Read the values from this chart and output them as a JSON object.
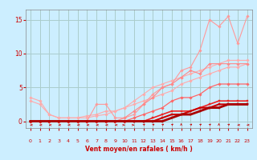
{
  "background_color": "#cceeff",
  "grid_color": "#aacccc",
  "xlabel": "Vent moyen/en rafales ( km/h )",
  "xlim": [
    -0.5,
    23.5
  ],
  "ylim": [
    -1.0,
    16.5
  ],
  "yticks": [
    0,
    5,
    10,
    15
  ],
  "xticks": [
    0,
    1,
    2,
    3,
    4,
    5,
    6,
    7,
    8,
    9,
    10,
    11,
    12,
    13,
    14,
    15,
    16,
    17,
    18,
    19,
    20,
    21,
    22,
    23
  ],
  "series": [
    {
      "x": [
        0,
        1,
        2,
        3,
        4,
        5,
        6,
        7,
        8,
        9,
        10,
        11,
        12,
        13,
        14,
        15,
        16,
        17,
        18,
        19,
        20,
        21,
        22,
        23
      ],
      "y": [
        3.0,
        2.5,
        1.0,
        0.5,
        0.5,
        0.5,
        0.8,
        1.0,
        1.5,
        1.5,
        2.0,
        2.5,
        3.0,
        3.5,
        4.0,
        4.5,
        5.5,
        6.0,
        6.5,
        7.0,
        7.5,
        8.0,
        8.0,
        8.5
      ],
      "color": "#ffaaaa",
      "lw": 0.8,
      "marker": "D",
      "ms": 1.8
    },
    {
      "x": [
        0,
        1,
        2,
        3,
        4,
        5,
        6,
        7,
        8,
        9,
        10,
        11,
        12,
        13,
        14,
        15,
        16,
        17,
        18,
        19,
        20,
        21,
        22,
        23
      ],
      "y": [
        3.5,
        3.0,
        1.0,
        0.5,
        0.5,
        0.5,
        0.5,
        0.8,
        1.0,
        1.5,
        2.0,
        3.0,
        4.0,
        5.0,
        5.5,
        6.0,
        6.5,
        7.0,
        7.5,
        8.0,
        8.5,
        9.0,
        9.0,
        9.0
      ],
      "color": "#ffaaaa",
      "lw": 0.8,
      "marker": "D",
      "ms": 1.8
    },
    {
      "x": [
        0,
        1,
        2,
        3,
        4,
        5,
        6,
        7,
        8,
        9,
        10,
        11,
        12,
        13,
        14,
        15,
        16,
        17,
        18,
        19,
        20,
        21,
        22,
        23
      ],
      "y": [
        0.0,
        0.0,
        0.0,
        0.0,
        0.0,
        0.0,
        0.0,
        2.5,
        2.5,
        0.5,
        0.5,
        1.0,
        2.5,
        4.0,
        5.0,
        5.5,
        7.5,
        8.0,
        10.5,
        15.0,
        14.0,
        15.5,
        11.5,
        15.5
      ],
      "color": "#ff9999",
      "lw": 0.8,
      "marker": "D",
      "ms": 1.8
    },
    {
      "x": [
        0,
        1,
        2,
        3,
        4,
        5,
        6,
        7,
        8,
        9,
        10,
        11,
        12,
        13,
        14,
        15,
        16,
        17,
        18,
        19,
        20,
        21,
        22,
        23
      ],
      "y": [
        0.0,
        0.0,
        0.0,
        0.0,
        0.0,
        0.0,
        0.0,
        0.0,
        0.0,
        0.0,
        0.5,
        1.5,
        2.5,
        3.5,
        5.0,
        5.5,
        6.5,
        7.5,
        7.0,
        8.5,
        8.5,
        8.5,
        8.5,
        8.5
      ],
      "color": "#ff8888",
      "lw": 0.8,
      "marker": "D",
      "ms": 1.8
    },
    {
      "x": [
        0,
        1,
        2,
        3,
        4,
        5,
        6,
        7,
        8,
        9,
        10,
        11,
        12,
        13,
        14,
        15,
        16,
        17,
        18,
        19,
        20,
        21,
        22,
        23
      ],
      "y": [
        0.0,
        0.0,
        0.0,
        0.0,
        0.0,
        0.0,
        0.0,
        0.0,
        0.0,
        0.0,
        0.0,
        0.5,
        1.0,
        1.5,
        2.0,
        3.0,
        3.5,
        3.5,
        4.0,
        5.0,
        5.5,
        5.5,
        5.5,
        5.5
      ],
      "color": "#ff6666",
      "lw": 0.9,
      "marker": "D",
      "ms": 1.8
    },
    {
      "x": [
        0,
        1,
        2,
        3,
        4,
        5,
        6,
        7,
        8,
        9,
        10,
        11,
        12,
        13,
        14,
        15,
        16,
        17,
        18,
        19,
        20,
        21,
        22,
        23
      ],
      "y": [
        0.0,
        0.0,
        0.0,
        0.0,
        0.0,
        0.0,
        0.0,
        0.0,
        0.0,
        0.0,
        0.0,
        0.0,
        0.0,
        0.5,
        1.0,
        1.5,
        1.5,
        1.5,
        2.0,
        2.5,
        3.0,
        3.0,
        3.0,
        3.0
      ],
      "color": "#ee2222",
      "lw": 1.2,
      "marker": "s",
      "ms": 2.0
    },
    {
      "x": [
        0,
        1,
        2,
        3,
        4,
        5,
        6,
        7,
        8,
        9,
        10,
        11,
        12,
        13,
        14,
        15,
        16,
        17,
        18,
        19,
        20,
        21,
        22,
        23
      ],
      "y": [
        0.0,
        0.0,
        0.0,
        0.0,
        0.0,
        0.0,
        0.0,
        0.0,
        0.0,
        0.0,
        0.0,
        0.0,
        0.0,
        0.0,
        0.5,
        1.0,
        1.0,
        1.5,
        2.0,
        2.0,
        2.5,
        2.5,
        2.5,
        2.5
      ],
      "color": "#cc0000",
      "lw": 1.5,
      "marker": "s",
      "ms": 2.0
    },
    {
      "x": [
        0,
        1,
        2,
        3,
        4,
        5,
        6,
        7,
        8,
        9,
        10,
        11,
        12,
        13,
        14,
        15,
        16,
        17,
        18,
        19,
        20,
        21,
        22,
        23
      ],
      "y": [
        0.0,
        0.0,
        0.0,
        0.0,
        0.0,
        0.0,
        0.0,
        0.0,
        0.0,
        0.0,
        0.0,
        0.0,
        0.0,
        0.0,
        0.0,
        0.5,
        1.0,
        1.0,
        1.5,
        2.0,
        2.0,
        2.5,
        2.5,
        2.5
      ],
      "color": "#aa0000",
      "lw": 2.0,
      "marker": "s",
      "ms": 2.0
    }
  ],
  "wind_arrows_x": [
    0,
    1,
    2,
    3,
    4,
    5,
    6,
    7,
    8,
    9,
    10,
    11,
    12,
    13,
    14,
    15,
    16,
    17,
    18,
    19,
    20,
    21,
    22,
    23
  ],
  "wind_angles": [
    270,
    270,
    270,
    270,
    270,
    270,
    270,
    270,
    270,
    270,
    90,
    90,
    45,
    45,
    45,
    45,
    0,
    45,
    45,
    45,
    0,
    45,
    270,
    270
  ],
  "arrow_color": "#cc0000"
}
